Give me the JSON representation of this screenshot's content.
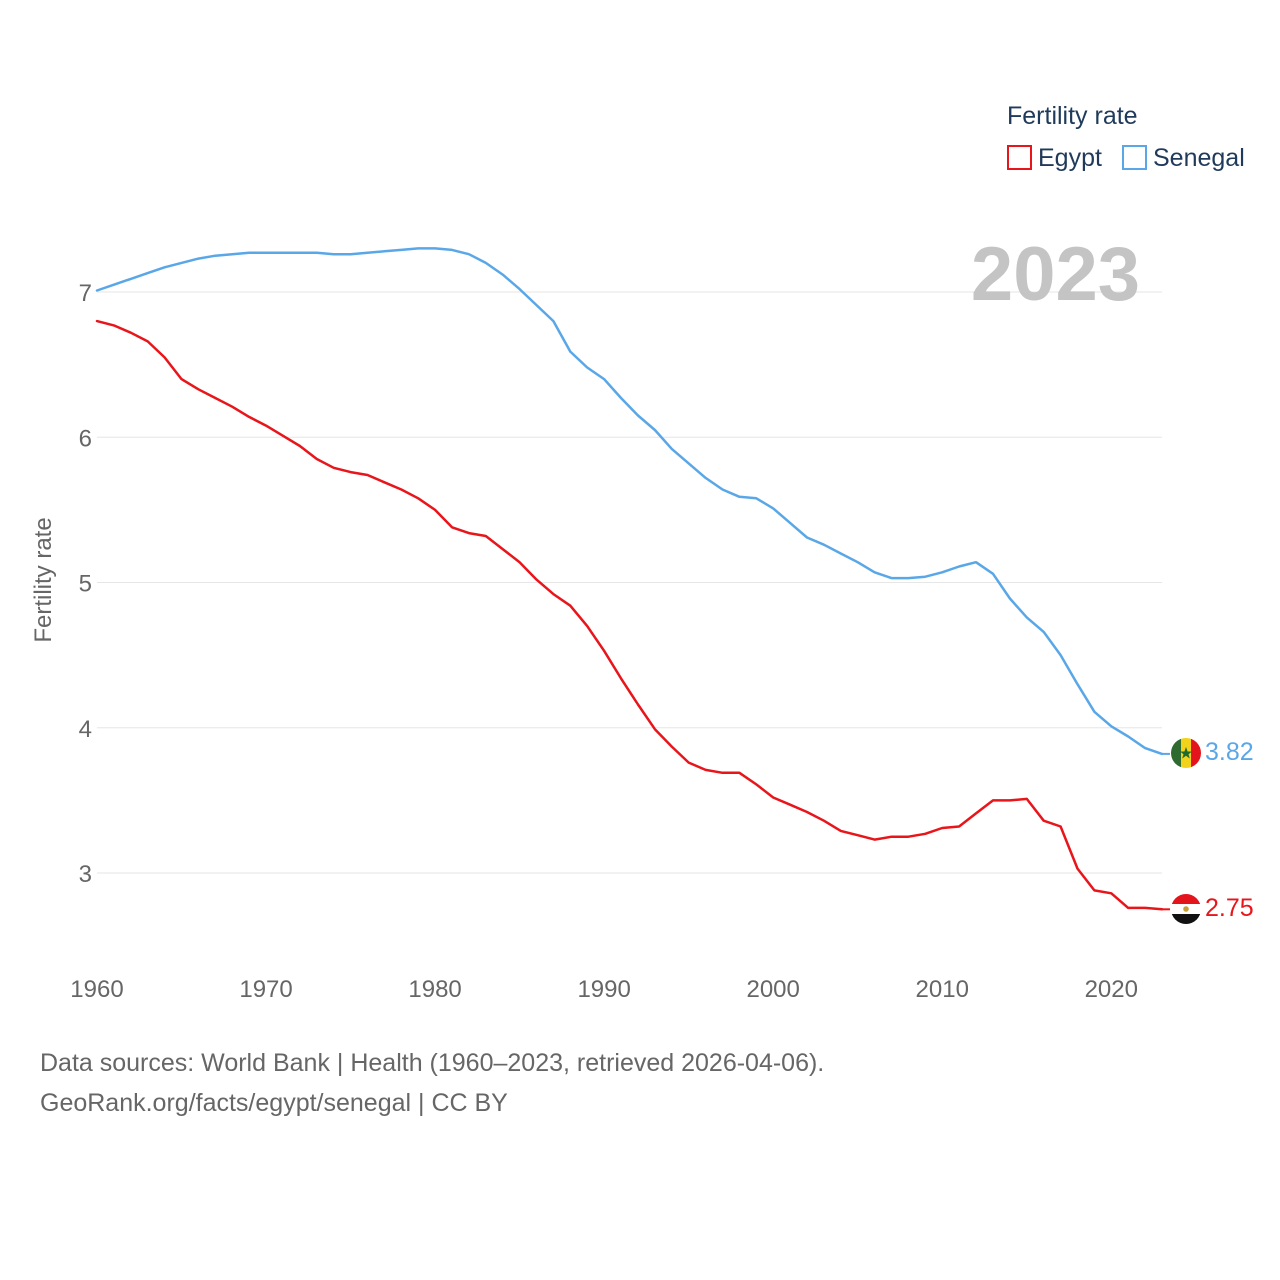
{
  "chart_data": {
    "type": "line",
    "year_badge": "2023",
    "ylabel": "Fertility rate",
    "xlabel": "",
    "ylim": [
      2.4,
      7.8
    ],
    "xlim": [
      1960,
      2023
    ],
    "yticks": [
      3,
      4,
      5,
      6,
      7
    ],
    "xticks": [
      1960,
      1970,
      1980,
      1990,
      2000,
      2010,
      2020
    ],
    "legend": {
      "title": "Fertility rate",
      "position": "top-right"
    },
    "x": [
      1960,
      1961,
      1962,
      1963,
      1964,
      1965,
      1966,
      1967,
      1968,
      1969,
      1970,
      1971,
      1972,
      1973,
      1974,
      1975,
      1976,
      1977,
      1978,
      1979,
      1980,
      1981,
      1982,
      1983,
      1984,
      1985,
      1986,
      1987,
      1988,
      1989,
      1990,
      1991,
      1992,
      1993,
      1994,
      1995,
      1996,
      1997,
      1998,
      1999,
      2000,
      2001,
      2002,
      2003,
      2004,
      2005,
      2006,
      2007,
      2008,
      2009,
      2010,
      2011,
      2012,
      2013,
      2014,
      2015,
      2016,
      2017,
      2018,
      2019,
      2020,
      2021,
      2022,
      2023
    ],
    "series": [
      {
        "name": "Egypt",
        "color": "#e8151b",
        "end_label": "2.75",
        "flag": "egypt-flag",
        "values": [
          6.8,
          6.77,
          6.72,
          6.66,
          6.55,
          6.4,
          6.33,
          6.27,
          6.21,
          6.14,
          6.08,
          6.01,
          5.94,
          5.85,
          5.79,
          5.76,
          5.74,
          5.69,
          5.64,
          5.58,
          5.5,
          5.38,
          5.34,
          5.32,
          5.23,
          5.14,
          5.02,
          4.92,
          4.84,
          4.7,
          4.53,
          4.34,
          4.16,
          3.99,
          3.87,
          3.76,
          3.71,
          3.69,
          3.69,
          3.61,
          3.52,
          3.47,
          3.42,
          3.36,
          3.29,
          3.26,
          3.23,
          3.25,
          3.25,
          3.27,
          3.31,
          3.32,
          3.41,
          3.5,
          3.5,
          3.51,
          3.36,
          3.32,
          3.03,
          2.88,
          2.86,
          2.76,
          2.76,
          2.75
        ]
      },
      {
        "name": "Senegal",
        "color": "#5aa7e8",
        "end_label": "3.82",
        "flag": "senegal-flag",
        "values": [
          7.01,
          7.05,
          7.09,
          7.13,
          7.17,
          7.2,
          7.23,
          7.25,
          7.26,
          7.27,
          7.27,
          7.27,
          7.27,
          7.27,
          7.26,
          7.26,
          7.27,
          7.28,
          7.29,
          7.3,
          7.3,
          7.29,
          7.26,
          7.2,
          7.12,
          7.02,
          6.91,
          6.8,
          6.59,
          6.48,
          6.4,
          6.27,
          6.15,
          6.05,
          5.92,
          5.82,
          5.72,
          5.64,
          5.59,
          5.58,
          5.51,
          5.41,
          5.31,
          5.26,
          5.2,
          5.14,
          5.07,
          5.03,
          5.03,
          5.04,
          5.07,
          5.11,
          5.14,
          5.06,
          4.89,
          4.76,
          4.66,
          4.5,
          4.3,
          4.11,
          4.01,
          3.94,
          3.86,
          3.82
        ]
      }
    ]
  },
  "footer": {
    "line1": "Data sources: World Bank | Health (1960–2023, retrieved 2026-04-06).",
    "line2": "GeoRank.org/facts/egypt/senegal | CC BY"
  }
}
